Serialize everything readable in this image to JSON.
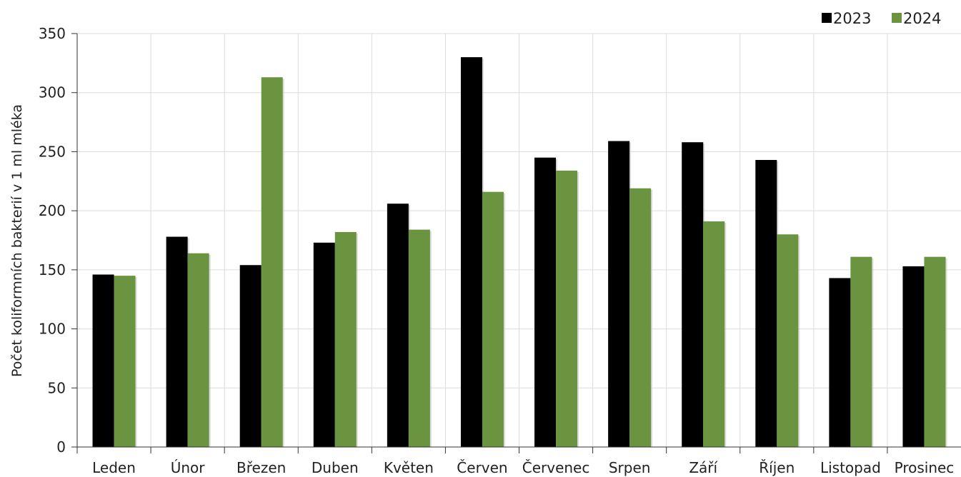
{
  "chart_data": {
    "type": "bar",
    "title": "",
    "xlabel": "",
    "ylabel": "Počet koliformních bakterií v 1 ml mléka",
    "ylim": [
      0,
      350
    ],
    "yticks": [
      0,
      50,
      100,
      150,
      200,
      250,
      300,
      350
    ],
    "grid": true,
    "legend_position": "top-right",
    "categories": [
      "Leden",
      "Únor",
      "Březen",
      "Duben",
      "Květen",
      "Červen",
      "Červenec",
      "Srpen",
      "Září",
      "Říjen",
      "Listopad",
      "Prosinec"
    ],
    "series": [
      {
        "name": "2023",
        "color": "#000000",
        "values": [
          146,
          178,
          154,
          173,
          206,
          330,
          245,
          259,
          258,
          243,
          143,
          153
        ]
      },
      {
        "name": "2024",
        "color": "#6a9440",
        "values": [
          145,
          164,
          313,
          182,
          184,
          216,
          234,
          219,
          191,
          180,
          161,
          161
        ]
      }
    ]
  }
}
